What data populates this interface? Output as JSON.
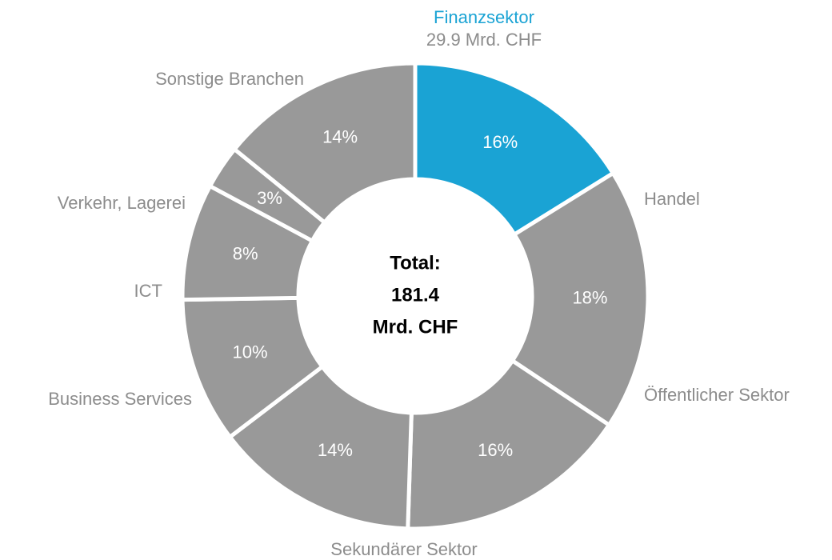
{
  "chart_data": {
    "type": "donut",
    "categories": [
      "Finanzsektor",
      "Handel",
      "Öffentlicher Sektor",
      "Sekundärer Sektor",
      "Business Services",
      "ICT",
      "Verkehr, Lagerei",
      "Sonstige Branchen"
    ],
    "values": [
      16,
      18,
      16,
      14,
      10,
      8,
      3,
      14
    ],
    "value_labels": [
      "16%",
      "18%",
      "16%",
      "14%",
      "10%",
      "8%",
      "3%",
      "14%"
    ],
    "colors": [
      "#1aa3d4",
      "#999999",
      "#999999",
      "#999999",
      "#999999",
      "#999999",
      "#999999",
      "#999999"
    ],
    "label_colors": [
      "#1aa3d4",
      "#8c8c8c",
      "#8c8c8c",
      "#8c8c8c",
      "#8c8c8c",
      "#8c8c8c",
      "#8c8c8c",
      "#8c8c8c"
    ],
    "highlight_annotation": "29.9 Mrd. CHF",
    "center_label": [
      "Total:",
      "181.4",
      "Mrd. CHF"
    ]
  }
}
